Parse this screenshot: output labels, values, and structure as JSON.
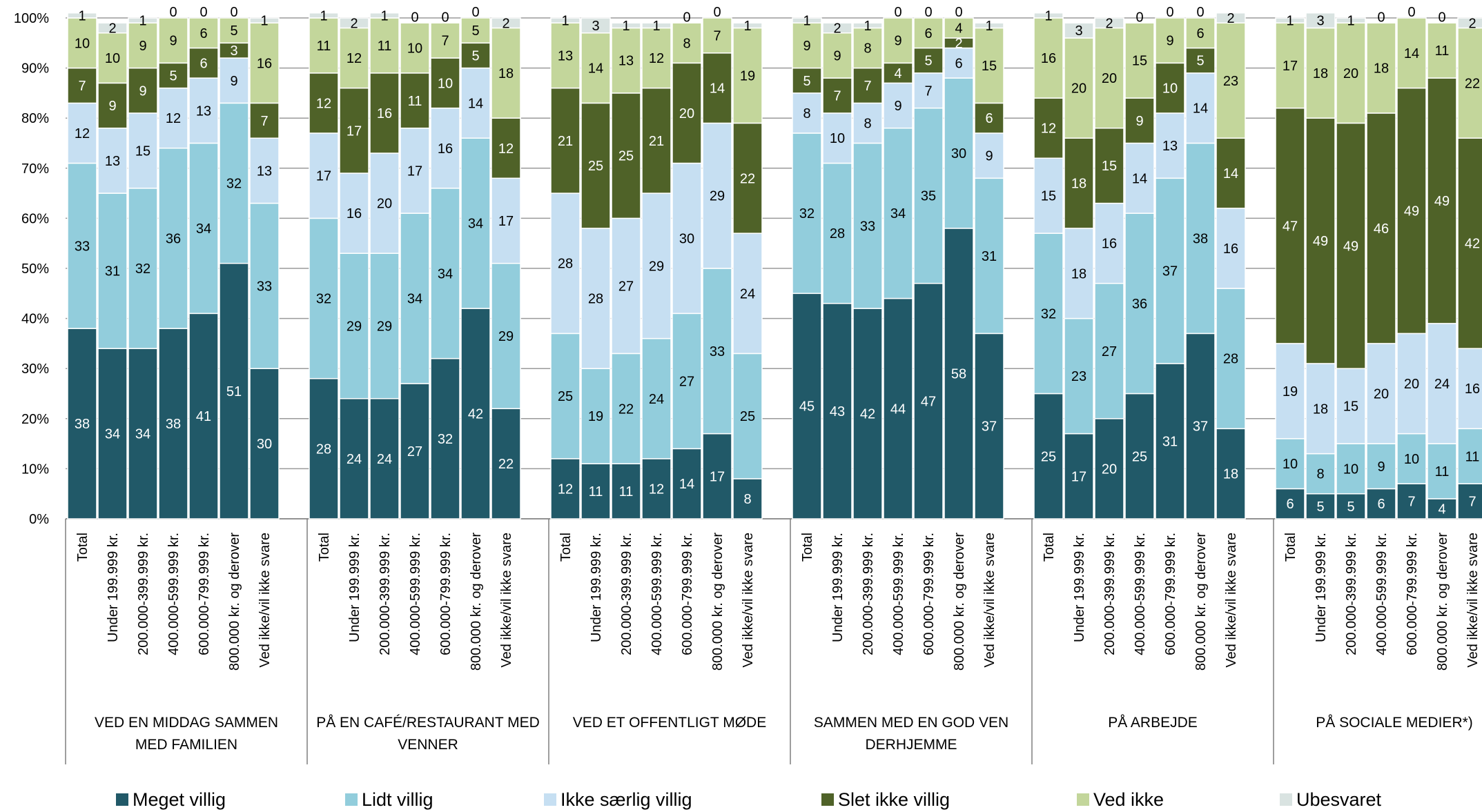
{
  "chart_data": {
    "type": "bar",
    "stacked": true,
    "title": "",
    "ylim": [
      0,
      100
    ],
    "y_ticks": [
      "0%",
      "10%",
      "20%",
      "30%",
      "40%",
      "50%",
      "60%",
      "70%",
      "80%",
      "90%",
      "100%"
    ],
    "grid": true,
    "legend_position": "bottom",
    "categories": [
      "Total",
      "Under 199.999 kr.",
      "200.000-399.999 kr.",
      "400.000-599.999 kr.",
      "600.000-799.999 kr.",
      "800.000 kr. og derover",
      "Ved ikke/vil ikke svare"
    ],
    "series": [
      {
        "name": "Meget villig",
        "color": "#215968"
      },
      {
        "name": "Lidt villig",
        "color": "#92CDDC"
      },
      {
        "name": "Ikke særlig villig",
        "color": "#C6DFF2"
      },
      {
        "name": "Slet ikke villig",
        "color": "#4F6228"
      },
      {
        "name": "Ved ikke",
        "color": "#C3D69B"
      },
      {
        "name": "Ubesvaret",
        "color": "#D9E3E1"
      }
    ],
    "groups": [
      {
        "label_lines": [
          "VED EN MIDDAG SAMMEN",
          "MED FAMILIEN"
        ],
        "bars": [
          [
            38,
            33,
            12,
            7,
            10,
            1
          ],
          [
            34,
            31,
            13,
            9,
            10,
            2
          ],
          [
            34,
            32,
            15,
            9,
            9,
            1
          ],
          [
            38,
            36,
            12,
            5,
            9,
            0
          ],
          [
            41,
            34,
            13,
            6,
            6,
            0
          ],
          [
            51,
            32,
            9,
            3,
            5,
            0
          ],
          [
            30,
            33,
            13,
            7,
            16,
            1
          ]
        ]
      },
      {
        "label_lines": [
          "PÅ EN CAFÉ/RESTAURANT MED",
          "VENNER"
        ],
        "bars": [
          [
            28,
            32,
            17,
            12,
            11,
            1
          ],
          [
            24,
            29,
            16,
            17,
            12,
            2
          ],
          [
            24,
            29,
            20,
            16,
            11,
            1
          ],
          [
            27,
            34,
            17,
            11,
            10,
            0
          ],
          [
            32,
            34,
            16,
            10,
            7,
            0
          ],
          [
            42,
            34,
            14,
            5,
            5,
            0
          ],
          [
            22,
            29,
            17,
            12,
            18,
            2
          ]
        ]
      },
      {
        "label_lines": [
          "VED ET OFFENTLIGT MØDE"
        ],
        "bars": [
          [
            12,
            25,
            28,
            21,
            13,
            1
          ],
          [
            11,
            19,
            28,
            25,
            14,
            3
          ],
          [
            11,
            22,
            27,
            25,
            13,
            1
          ],
          [
            12,
            24,
            29,
            21,
            12,
            1
          ],
          [
            14,
            27,
            30,
            20,
            8,
            0
          ],
          [
            17,
            33,
            29,
            14,
            7,
            0
          ],
          [
            8,
            25,
            24,
            22,
            19,
            1
          ]
        ]
      },
      {
        "label_lines": [
          "SAMMEN MED EN GOD VEN",
          "DERHJEMME"
        ],
        "bars": [
          [
            45,
            32,
            8,
            5,
            9,
            1
          ],
          [
            43,
            28,
            10,
            7,
            9,
            2
          ],
          [
            42,
            33,
            8,
            7,
            8,
            1
          ],
          [
            44,
            34,
            9,
            4,
            9,
            0
          ],
          [
            47,
            35,
            7,
            5,
            6,
            0
          ],
          [
            58,
            30,
            6,
            2,
            4,
            0
          ],
          [
            37,
            31,
            9,
            6,
            15,
            1
          ]
        ]
      },
      {
        "label_lines": [
          "PÅ ARBEJDE"
        ],
        "bars": [
          [
            25,
            32,
            15,
            12,
            16,
            1
          ],
          [
            17,
            23,
            18,
            18,
            20,
            3
          ],
          [
            20,
            27,
            16,
            15,
            20,
            2
          ],
          [
            25,
            36,
            14,
            9,
            15,
            0
          ],
          [
            31,
            37,
            13,
            10,
            9,
            0
          ],
          [
            37,
            38,
            14,
            5,
            6,
            0
          ],
          [
            18,
            28,
            16,
            14,
            23,
            2
          ]
        ]
      },
      {
        "label_lines": [
          "PÅ SOCIALE MEDIER*)"
        ],
        "bars": [
          [
            6,
            10,
            19,
            47,
            17,
            1
          ],
          [
            5,
            8,
            18,
            49,
            18,
            3
          ],
          [
            5,
            10,
            15,
            49,
            20,
            1
          ],
          [
            6,
            9,
            20,
            46,
            18,
            0
          ],
          [
            7,
            10,
            20,
            49,
            14,
            0
          ],
          [
            4,
            11,
            24,
            49,
            11,
            0
          ],
          [
            7,
            11,
            16,
            42,
            22,
            2
          ]
        ]
      }
    ]
  }
}
